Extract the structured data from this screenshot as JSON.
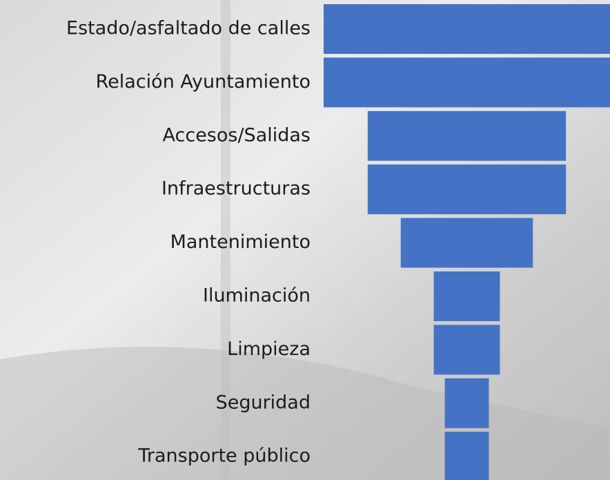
{
  "chart_data": {
    "type": "funnel",
    "categories": [
      "Estado/asfaltado de calles",
      "Relación Ayuntamiento",
      "Accesos/Salidas",
      "Infraestructuras",
      "Mantenimiento",
      "Iluminación",
      "Limpieza",
      "Seguridad",
      "Transporte público"
    ],
    "values": [
      26,
      26,
      18,
      18,
      12,
      6,
      6,
      4,
      4
    ],
    "color": "#4472c4"
  }
}
